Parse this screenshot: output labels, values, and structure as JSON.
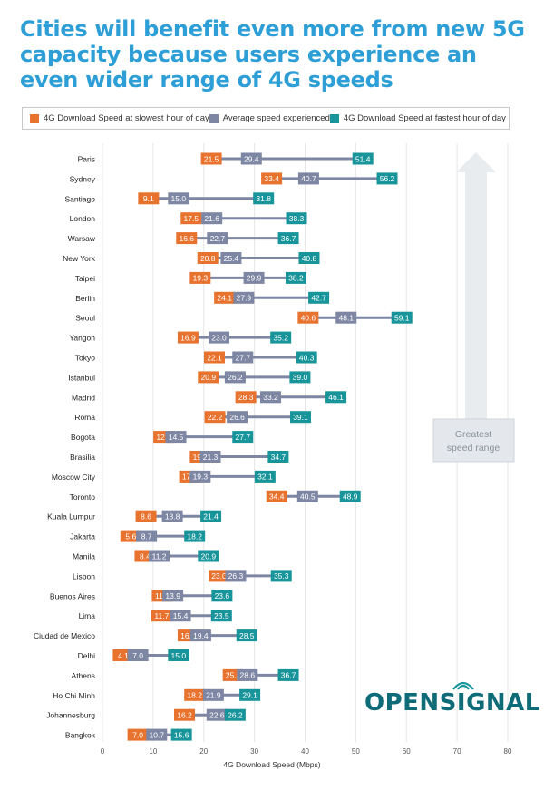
{
  "title": "Cities will benefit even more from new 5G capacity because users experience an even wider range of 4G speeds",
  "legend": {
    "slow_label": "4G Download Speed at slowest hour of day",
    "avg_label": "Average speed experienced",
    "fast_label": "4G Download Speed at fastest hour of day"
  },
  "annotation": "Greatest speed range",
  "logo": {
    "text": "OPENSIGNAL"
  },
  "colors": {
    "slow": "#e8732f",
    "avg": "#7d86a3",
    "fast": "#18959a",
    "title": "#2e9fd6",
    "grid": "#e6e6e6",
    "arrow": "#e9ecef"
  },
  "chart_data": {
    "type": "dot_range",
    "xlabel": "4G Download Speed (Mbps)",
    "xlim": [
      0,
      80
    ],
    "xticks": [
      0,
      10,
      20,
      30,
      40,
      50,
      60,
      70,
      80
    ],
    "grid": true,
    "legend_position": "top",
    "series": [
      {
        "name": "4G Download Speed at slowest hour of day",
        "key": "slow"
      },
      {
        "name": "Average speed experienced",
        "key": "avg"
      },
      {
        "name": "4G Download Speed at fastest hour of day",
        "key": "fast"
      }
    ],
    "rows": [
      {
        "city": "Paris",
        "slow": 21.5,
        "avg": 29.4,
        "fast": 51.4
      },
      {
        "city": "Sydney",
        "slow": 33.4,
        "avg": 40.7,
        "fast": 56.2
      },
      {
        "city": "Santiago",
        "slow": 9.1,
        "avg": 15.0,
        "fast": 31.8
      },
      {
        "city": "London",
        "slow": 17.5,
        "avg": 21.6,
        "fast": 38.3
      },
      {
        "city": "Warsaw",
        "slow": 16.6,
        "avg": 22.7,
        "fast": 36.7
      },
      {
        "city": "New York",
        "slow": 20.8,
        "avg": 25.4,
        "fast": 40.8
      },
      {
        "city": "Taipei",
        "slow": 19.3,
        "avg": 29.9,
        "fast": 38.2
      },
      {
        "city": "Berlin",
        "slow": 24.1,
        "avg": 27.9,
        "fast": 42.7
      },
      {
        "city": "Seoul",
        "slow": 40.6,
        "avg": 48.1,
        "fast": 59.1
      },
      {
        "city": "Yangon",
        "slow": 16.9,
        "avg": 23.0,
        "fast": 35.2
      },
      {
        "city": "Tokyo",
        "slow": 22.1,
        "avg": 27.7,
        "fast": 40.3
      },
      {
        "city": "Istanbul",
        "slow": 20.9,
        "avg": 26.2,
        "fast": 39.0
      },
      {
        "city": "Madrid",
        "slow": 28.3,
        "avg": 33.2,
        "fast": 46.1
      },
      {
        "city": "Roma",
        "slow": 22.2,
        "avg": 26.6,
        "fast": 39.1
      },
      {
        "city": "Bogota",
        "slow": 12.1,
        "avg": 14.5,
        "fast": 27.7
      },
      {
        "city": "Brasilia",
        "slow": 19.3,
        "avg": 21.3,
        "fast": 34.7
      },
      {
        "city": "Moscow City",
        "slow": 17.2,
        "avg": 19.3,
        "fast": 32.1
      },
      {
        "city": "Toronto",
        "slow": 34.4,
        "avg": 40.5,
        "fast": 48.9
      },
      {
        "city": "Kuala Lumpur",
        "slow": 8.6,
        "avg": 13.8,
        "fast": 21.4
      },
      {
        "city": "Jakarta",
        "slow": 5.6,
        "avg": 8.7,
        "fast": 18.2
      },
      {
        "city": "Manila",
        "slow": 8.4,
        "avg": 11.2,
        "fast": 20.9
      },
      {
        "city": "Lisbon",
        "slow": 23.0,
        "avg": 26.3,
        "fast": 35.3
      },
      {
        "city": "Buenos Aires",
        "slow": 11.8,
        "avg": 13.9,
        "fast": 23.6
      },
      {
        "city": "Lima",
        "slow": 11.7,
        "avg": 15.4,
        "fast": 23.5
      },
      {
        "city": "Ciudad de Mexico",
        "slow": 16.9,
        "avg": 19.4,
        "fast": 28.5
      },
      {
        "city": "Delhi",
        "slow": 4.1,
        "avg": 7.0,
        "fast": 15.0
      },
      {
        "city": "Athens",
        "slow": 25.8,
        "avg": 28.6,
        "fast": 36.7
      },
      {
        "city": "Ho Chi Minh",
        "slow": 18.2,
        "avg": 21.9,
        "fast": 29.1
      },
      {
        "city": "Johannesburg",
        "slow": 16.2,
        "avg": 22.6,
        "fast": 26.2
      },
      {
        "city": "Bangkok",
        "slow": 7.0,
        "avg": 10.7,
        "fast": 15.6
      }
    ]
  }
}
